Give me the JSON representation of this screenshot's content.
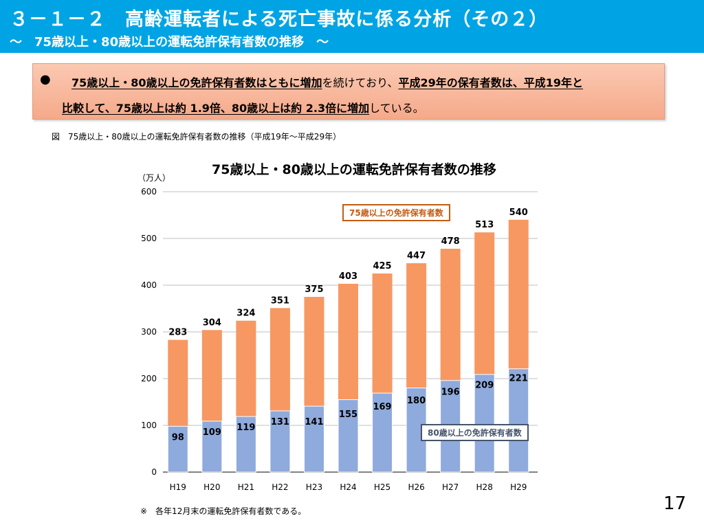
{
  "header": {
    "title": "３－１－２　高齢運転者による死亡事故に係る分析（その２）",
    "subtitle": "～　75歳以上・80歳以上の運転免許保有者数の推移　～"
  },
  "summary": {
    "bullet": "●",
    "line1": [
      {
        "text": "75歳以上・80歳以上の免許保有者数はともに増加",
        "style": "u"
      },
      {
        "text": "を続けており、",
        "style": "plain"
      },
      {
        "text": "平成29年の保有者数は、平成19年と",
        "style": "u"
      }
    ],
    "line2": [
      {
        "text": "比較して、75歳以上は約 1.9倍、80歳以上は約 2.3倍に増加",
        "style": "u"
      },
      {
        "text": "している。",
        "style": "plain"
      }
    ]
  },
  "caption": "図　75歳以上・80歳以上の運転免許保有者数の推移（平成19年～平成29年）",
  "note": "※　各年12月末の運転免許保有者数である。",
  "page_number": "17",
  "colors": {
    "header_bg": "#00a4e4",
    "bar_75": "#f79862",
    "bar_80": "#8faadc",
    "legend_75": "#c55a11",
    "legend_80": "#44546a"
  },
  "chart_data": {
    "type": "bar",
    "stacked": "overlay",
    "title": "75歳以上・80歳以上の運転免許保有者数の推移",
    "ylabel": "（万人）",
    "xlabel": "",
    "ylim": [
      0,
      600
    ],
    "yticks": [
      0,
      100,
      200,
      300,
      400,
      500,
      600
    ],
    "grid": true,
    "categories": [
      "H19",
      "H20",
      "H21",
      "H22",
      "H23",
      "H24",
      "H25",
      "H26",
      "H27",
      "H28",
      "H29"
    ],
    "series": [
      {
        "name": "75歳以上の免許保有者数",
        "values": [
          283,
          304,
          324,
          351,
          375,
          403,
          425,
          447,
          478,
          513,
          540
        ]
      },
      {
        "name": "80歳以上の免許保有者数",
        "values": [
          98,
          109,
          119,
          131,
          141,
          155,
          169,
          180,
          196,
          209,
          221
        ]
      }
    ]
  }
}
